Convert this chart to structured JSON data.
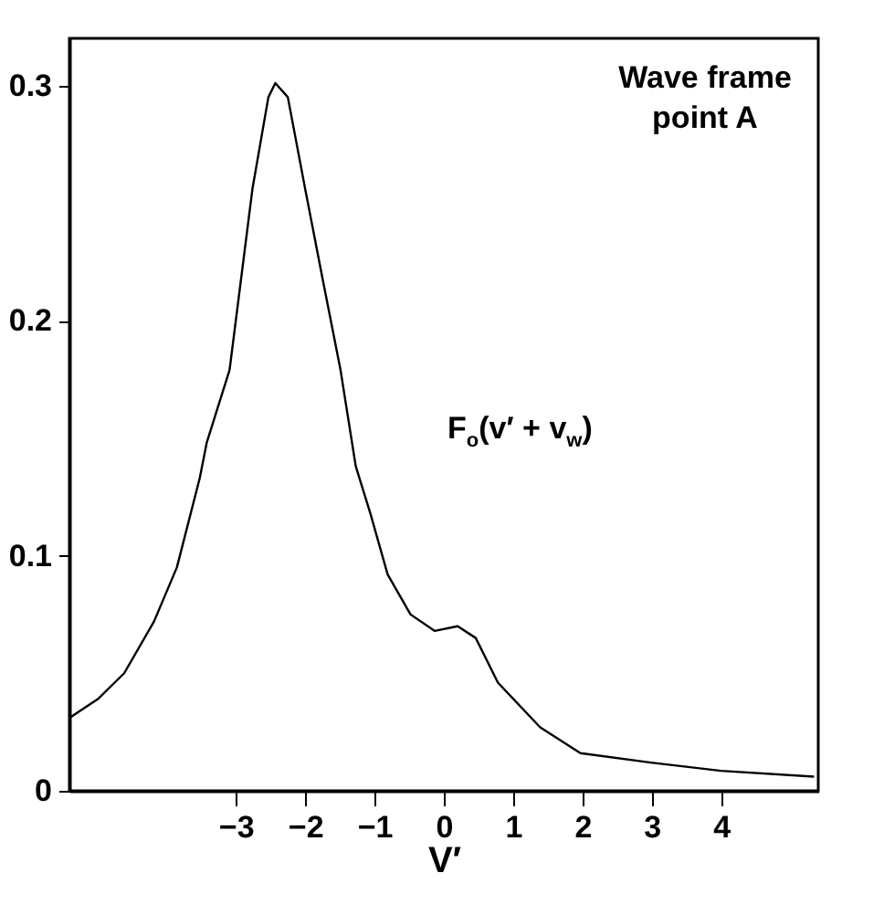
{
  "chart_data": {
    "type": "line",
    "xlabel": "V′",
    "annotations": [
      "Wave frame\npoint A"
    ],
    "xlim": [
      -5.4,
      5.4
    ],
    "ylim": [
      0,
      0.32
    ],
    "xticks": [
      -3,
      -2,
      -1,
      0,
      1,
      2,
      3,
      4
    ],
    "yticks": [
      0,
      0.1,
      0.2,
      0.3
    ],
    "grid": false,
    "marker": "none",
    "line_style": "solid",
    "series": [
      {
        "name": "F$_{o}$(v′ + v$_{w}$)",
        "color": "#000000",
        "x": [
          -5.4,
          -4.99,
          -4.61,
          -4.18,
          -3.85,
          -3.52,
          -3.42,
          -3.09,
          -2.76,
          -2.53,
          -2.43,
          -2.25,
          -2.0,
          -1.75,
          -1.49,
          -1.27,
          -1.06,
          -0.81,
          -0.48,
          -0.13,
          0.2,
          0.46,
          0.78,
          1.39,
          1.97,
          2.99,
          4.0,
          5.34
        ],
        "values": [
          0.031,
          0.039,
          0.05,
          0.072,
          0.095,
          0.133,
          0.148,
          0.179,
          0.256,
          0.295,
          0.301,
          0.295,
          0.256,
          0.218,
          0.179,
          0.138,
          0.118,
          0.092,
          0.075,
          0.068,
          0.07,
          0.065,
          0.046,
          0.027,
          0.016,
          0.012,
          0.0085,
          0.006
        ]
      }
    ]
  }
}
